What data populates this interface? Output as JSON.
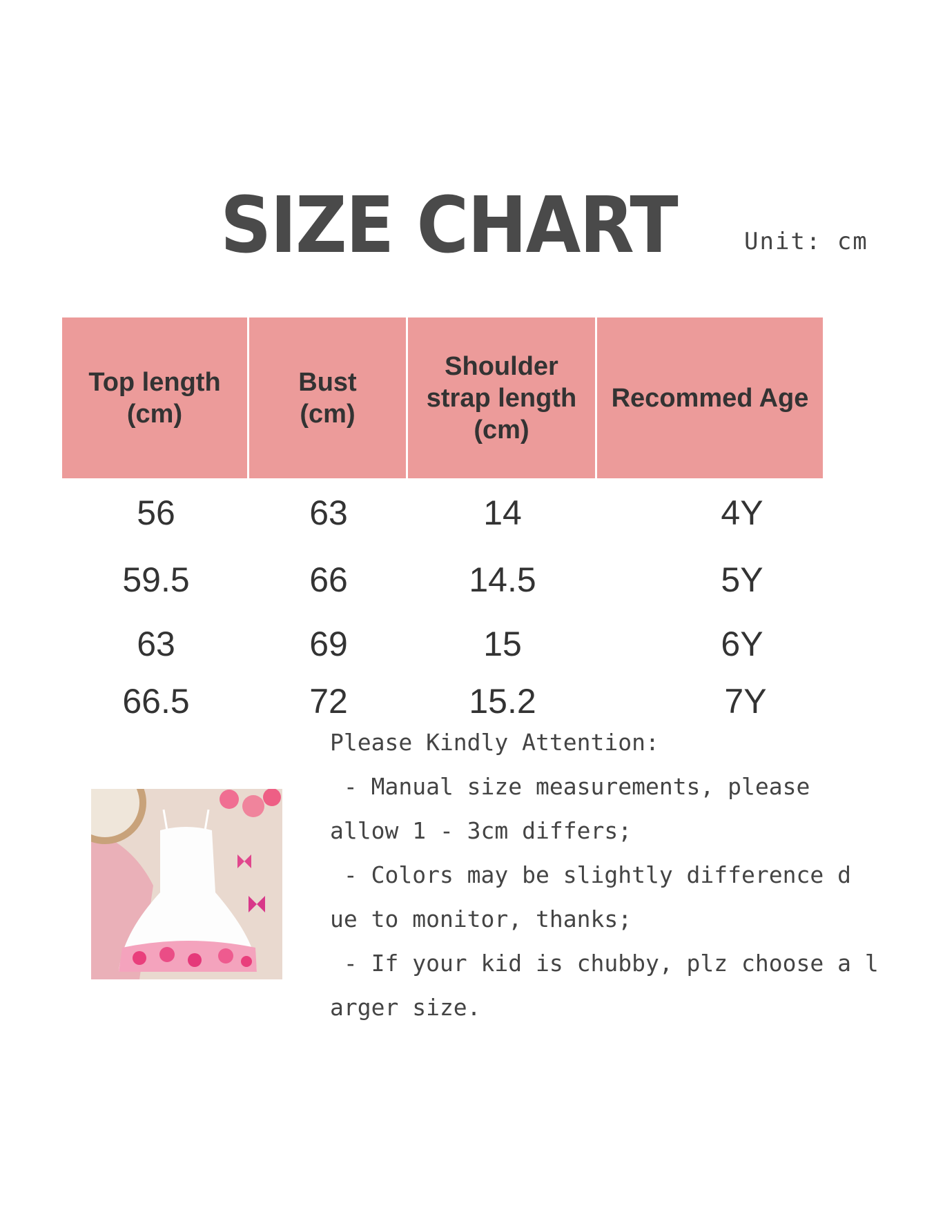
{
  "title": "SIZE CHART",
  "unit": "Unit:  cm",
  "table": {
    "headers": [
      "Top length\n(cm)",
      "Bust\n(cm)",
      "Shoulder\nstrap length\n(cm)",
      "Recommed Age"
    ],
    "rows": [
      [
        "56",
        "63",
        "14",
        "4Y"
      ],
      [
        "59.5",
        "66",
        "14.5",
        "5Y"
      ],
      [
        "63",
        "69",
        "15",
        "6Y"
      ],
      [
        "66.5",
        "72",
        "15.2",
        "7Y"
      ]
    ],
    "header_color": "#ec9b9a"
  },
  "notes": [
    "Please Kindly Attention:",
    " - Manual size measurements, please",
    "allow 1 - 3cm differs;",
    " - Colors may be slightly difference d",
    "ue to monitor, thanks;",
    " - If your kid is chubby, plz choose a l",
    "arger size."
  ]
}
